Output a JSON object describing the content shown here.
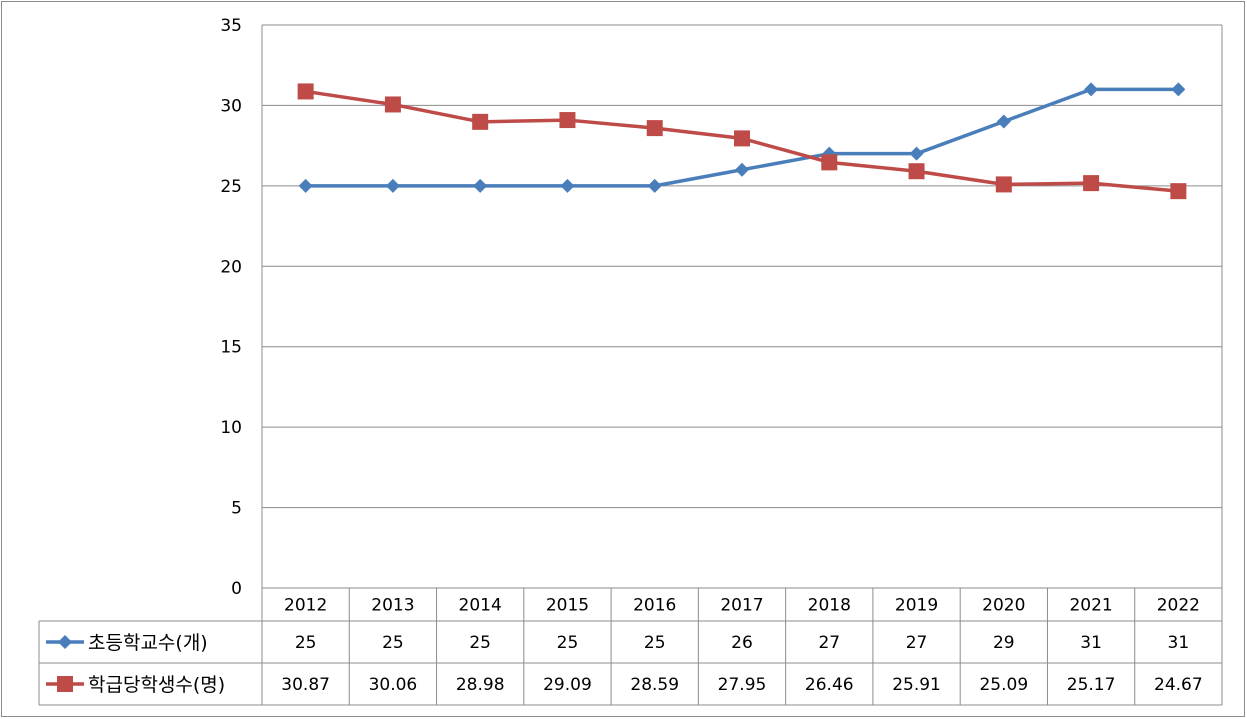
{
  "chart_data": {
    "type": "line",
    "title": "",
    "xlabel": "",
    "ylabel": "",
    "categories": [
      "2012",
      "2013",
      "2014",
      "2015",
      "2016",
      "2017",
      "2018",
      "2019",
      "2020",
      "2021",
      "2022"
    ],
    "ylim": [
      0,
      35
    ],
    "yticks": [
      0,
      5,
      10,
      15,
      20,
      25,
      30,
      35
    ],
    "grid": true,
    "legend": "data-table-left",
    "series": [
      {
        "name": "초등학교수(개)",
        "values": [
          25,
          25,
          25,
          25,
          25,
          26,
          27,
          27,
          29,
          31,
          31
        ],
        "labels": [
          "25",
          "25",
          "25",
          "25",
          "25",
          "26",
          "27",
          "27",
          "29",
          "31",
          "31"
        ],
        "color": "#4a7ebb",
        "marker": "diamond"
      },
      {
        "name": "학급당학생수(명)",
        "values": [
          30.87,
          30.06,
          28.98,
          29.09,
          28.59,
          27.95,
          26.46,
          25.91,
          25.09,
          25.17,
          24.67
        ],
        "labels": [
          "30.87",
          "30.06",
          "28.98",
          "29.09",
          "28.59",
          "27.95",
          "26.46",
          "25.91",
          "25.09",
          "25.17",
          "24.67"
        ],
        "color": "#be4b48",
        "marker": "square"
      }
    ]
  }
}
